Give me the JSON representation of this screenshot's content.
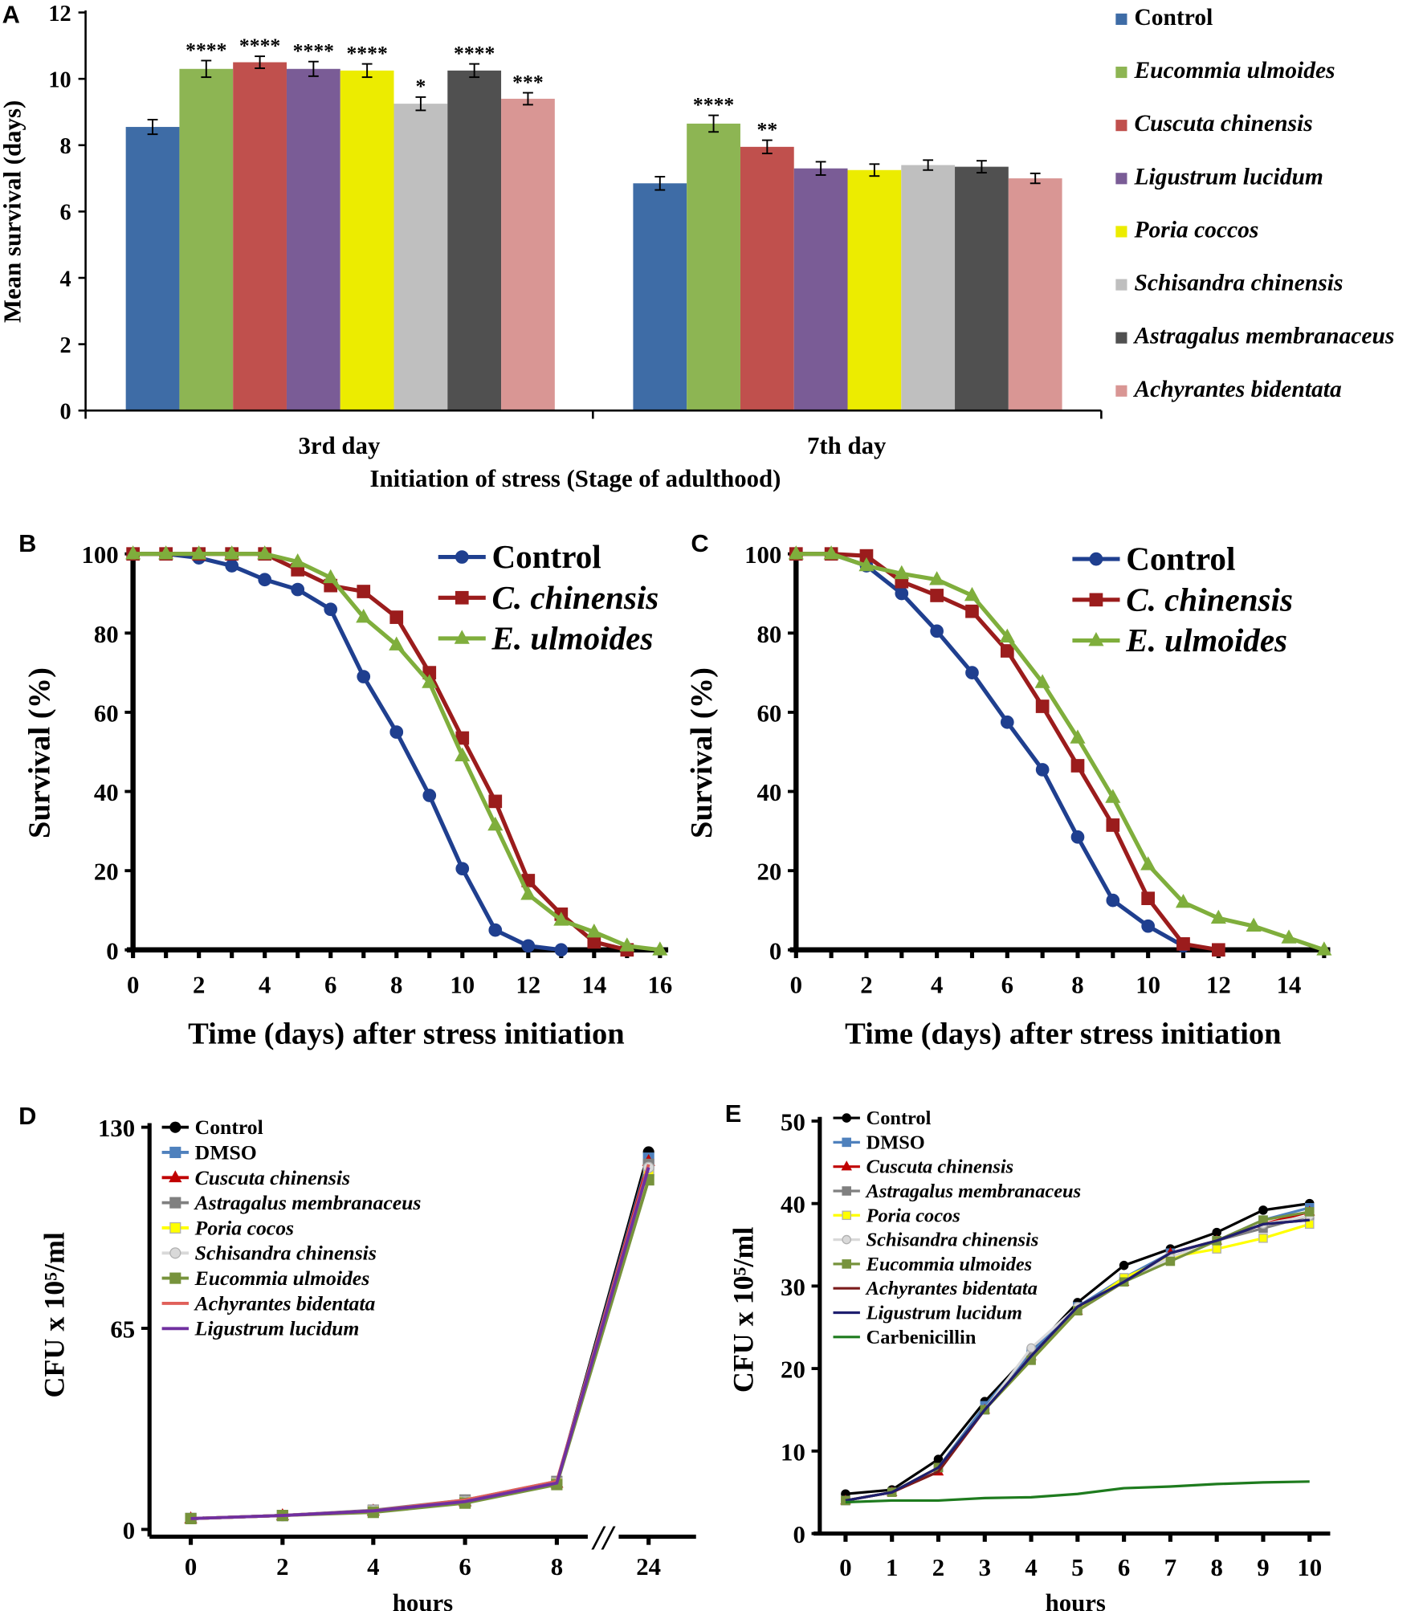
{
  "panels": [
    "A",
    "B",
    "C",
    "D",
    "E"
  ],
  "chart_data": [
    {
      "panel": "A",
      "type": "bar",
      "ylabel": "Mean survival (days)",
      "xlabel": "Initiation of stress (Stage of adulthood)",
      "categories": [
        "3rd day",
        "7th day"
      ],
      "ylim": [
        0,
        12
      ],
      "yticks": [
        0,
        2,
        4,
        6,
        8,
        10,
        12
      ],
      "legend_position": "right",
      "series": [
        {
          "name": "Control",
          "italic": false,
          "color": "#3e6ca6",
          "values": [
            8.55,
            6.85
          ],
          "errors": [
            0.22,
            0.2
          ],
          "significance": [
            "",
            ""
          ]
        },
        {
          "name": "Eucommia ulmoides",
          "italic": true,
          "color": "#8db553",
          "values": [
            10.3,
            8.65
          ],
          "errors": [
            0.25,
            0.25
          ],
          "significance": [
            "****",
            "****"
          ]
        },
        {
          "name": "Cuscuta chinensis",
          "italic": true,
          "color": "#c0504d",
          "values": [
            10.5,
            7.95
          ],
          "errors": [
            0.18,
            0.2
          ],
          "significance": [
            "****",
            "**"
          ]
        },
        {
          "name": "Ligustrum lucidum",
          "italic": true,
          "color": "#7a5c96",
          "values": [
            10.3,
            7.3
          ],
          "errors": [
            0.22,
            0.2
          ],
          "significance": [
            "****",
            ""
          ]
        },
        {
          "name": "Poria coccos",
          "italic": true,
          "color": "#ecec00",
          "values": [
            10.25,
            7.25
          ],
          "errors": [
            0.2,
            0.18
          ],
          "significance": [
            "****",
            ""
          ]
        },
        {
          "name": "Schisandra chinensis",
          "italic": true,
          "color": "#bfbfbf",
          "values": [
            9.25,
            7.4
          ],
          "errors": [
            0.2,
            0.15
          ],
          "significance": [
            "*",
            ""
          ]
        },
        {
          "name": "Astragalus membranaceus",
          "italic": true,
          "color": "#505050",
          "values": [
            10.25,
            7.35
          ],
          "errors": [
            0.2,
            0.18
          ],
          "significance": [
            "****",
            ""
          ]
        },
        {
          "name": "Achyrantes bidentata",
          "italic": true,
          "color": "#d99694",
          "values": [
            9.4,
            7.0
          ],
          "errors": [
            0.18,
            0.15
          ],
          "significance": [
            "***",
            ""
          ]
        }
      ]
    },
    {
      "panel": "B",
      "type": "line",
      "ylabel": "Survival (%)",
      "xlabel": "Time (days) after stress initiation",
      "xlim": [
        0,
        16
      ],
      "ylim": [
        0,
        100
      ],
      "xticks": [
        0,
        2,
        4,
        6,
        8,
        10,
        12,
        14,
        16
      ],
      "yticks": [
        0,
        20,
        40,
        60,
        80,
        100
      ],
      "legend_position": "top-right",
      "series": [
        {
          "name": "Control",
          "italic": false,
          "color": "#1f3f8f",
          "marker": "circle",
          "x": [
            0,
            1,
            2,
            3,
            4,
            5,
            6,
            7,
            8,
            9,
            10,
            11,
            12,
            13
          ],
          "y": [
            100,
            100,
            99,
            97,
            93.5,
            91,
            86,
            69,
            55,
            39,
            20.5,
            5,
            1,
            0
          ]
        },
        {
          "name": "C. chinensis",
          "italic": true,
          "color": "#9b1c1c",
          "marker": "square",
          "x": [
            0,
            1,
            2,
            3,
            4,
            5,
            6,
            7,
            8,
            9,
            10,
            11,
            12,
            13,
            14,
            15
          ],
          "y": [
            100,
            100,
            100,
            100,
            100,
            96,
            92,
            90.5,
            84,
            70,
            53.5,
            37.5,
            17.5,
            9,
            2,
            0
          ]
        },
        {
          "name": "E. ulmoides",
          "italic": true,
          "color": "#7fae3c",
          "marker": "triangle",
          "x": [
            0,
            1,
            2,
            3,
            4,
            5,
            6,
            7,
            8,
            9,
            10,
            11,
            12,
            13,
            14,
            15,
            16
          ],
          "y": [
            100,
            100,
            100,
            100,
            100,
            98,
            94,
            84,
            77,
            67.5,
            49,
            31.5,
            14,
            7.5,
            4.5,
            1,
            0
          ]
        }
      ]
    },
    {
      "panel": "C",
      "type": "line",
      "ylabel": "Survival (%)",
      "xlabel": "Time (days) after stress initiation",
      "xlim": [
        0,
        15
      ],
      "ylim": [
        0,
        100
      ],
      "xticks": [
        0,
        2,
        4,
        6,
        8,
        10,
        12,
        14
      ],
      "yticks": [
        0,
        20,
        40,
        60,
        80,
        100
      ],
      "legend_position": "top-right",
      "series": [
        {
          "name": "Control",
          "italic": false,
          "color": "#1f3f8f",
          "marker": "circle",
          "x": [
            0,
            1,
            2,
            3,
            4,
            5,
            6,
            7,
            8,
            9,
            10,
            11
          ],
          "y": [
            100,
            100,
            97,
            90,
            80.5,
            70,
            57.5,
            45.5,
            28.5,
            12.5,
            6,
            1
          ]
        },
        {
          "name": "C. chinensis",
          "italic": true,
          "color": "#9b1c1c",
          "marker": "square",
          "x": [
            0,
            1,
            2,
            3,
            4,
            5,
            6,
            7,
            8,
            9,
            10,
            11,
            12
          ],
          "y": [
            100,
            100,
            99.5,
            93,
            89.5,
            85.5,
            75.5,
            61.5,
            46.5,
            31.5,
            13,
            1.5,
            0
          ]
        },
        {
          "name": "E. ulmoides",
          "italic": true,
          "color": "#7fae3c",
          "marker": "triangle",
          "x": [
            0,
            1,
            2,
            3,
            4,
            5,
            6,
            7,
            8,
            9,
            10,
            11,
            12,
            13,
            14,
            15
          ],
          "y": [
            100,
            100,
            97,
            95,
            93.5,
            89.5,
            79,
            67.5,
            53.5,
            38.5,
            21.5,
            12,
            8,
            6,
            3,
            0
          ]
        }
      ]
    },
    {
      "panel": "D",
      "type": "line",
      "ylabel": "CFU x 10⁵/ml",
      "xlabel": "hours",
      "categories": [
        "0",
        "2",
        "4",
        "6",
        "8",
        "24"
      ],
      "axis_break": "//",
      "ylim": [
        0,
        130
      ],
      "yticks": [
        0,
        65,
        130
      ],
      "legend_position": "top-left",
      "series": [
        {
          "name": "Control",
          "italic": false,
          "color": "#000000",
          "marker": "circle",
          "y": [
            3.5,
            4.5,
            6,
            9,
            15,
            122
          ]
        },
        {
          "name": "DMSO",
          "italic": false,
          "color": "#4f81bd",
          "marker": "square",
          "y": [
            3.5,
            4.5,
            6,
            9,
            15,
            120
          ]
        },
        {
          "name": "Cuscuta chinensis",
          "italic": true,
          "color": "#c00000",
          "marker": "triangle",
          "y": [
            3.5,
            4.5,
            6,
            9,
            15,
            119
          ]
        },
        {
          "name": "Astragalus membranaceus",
          "italic": true,
          "color": "#808080",
          "marker": "square",
          "y": [
            3.5,
            4.5,
            6.2,
            9.5,
            15.5,
            118
          ]
        },
        {
          "name": "Poria cocos",
          "italic": true,
          "color": "#ffff00",
          "marker": "square",
          "y": [
            3.5,
            4.5,
            6,
            9,
            15,
            116
          ]
        },
        {
          "name": "Schisandra chinensis",
          "italic": true,
          "color": "#d9d9d9",
          "marker": "circle",
          "y": [
            3.5,
            4.5,
            6,
            9,
            15,
            117
          ]
        },
        {
          "name": "Eucommia ulmoides",
          "italic": true,
          "color": "#77933c",
          "marker": "square",
          "y": [
            3.5,
            4.5,
            5.5,
            8.5,
            14.5,
            113
          ]
        },
        {
          "name": "Achyrantes bidentata",
          "italic": true,
          "color": "#e0605a",
          "marker": "none",
          "y": [
            3.5,
            4.5,
            6,
            9.5,
            15.5,
            118
          ]
        },
        {
          "name": "Ligustrum lucidum",
          "italic": true,
          "color": "#7030a0",
          "marker": "none",
          "y": [
            3.5,
            4.5,
            6,
            9,
            15,
            117
          ]
        }
      ]
    },
    {
      "panel": "E",
      "type": "line",
      "ylabel": "CFU x 10⁵/ml",
      "xlabel": "hours",
      "xlim": [
        0,
        10
      ],
      "ylim": [
        0,
        50
      ],
      "xticks": [
        0,
        1,
        2,
        3,
        4,
        5,
        6,
        7,
        8,
        9,
        10
      ],
      "yticks": [
        0,
        10,
        20,
        30,
        40,
        50
      ],
      "legend_position": "top-left",
      "series": [
        {
          "name": "Control",
          "italic": false,
          "color": "#000000",
          "marker": "circle",
          "y": [
            4.8,
            5.3,
            9,
            16,
            22,
            28,
            32.5,
            34.5,
            36.5,
            39.2,
            40
          ]
        },
        {
          "name": "DMSO",
          "italic": false,
          "color": "#4f81bd",
          "marker": "square",
          "y": [
            4,
            5,
            8,
            15.5,
            22,
            27.5,
            31,
            34,
            35.5,
            38,
            39.5
          ]
        },
        {
          "name": "Cuscuta chinensis",
          "italic": true,
          "color": "#c00000",
          "marker": "triangle",
          "y": [
            4,
            5,
            7.5,
            15,
            21.5,
            27,
            30.5,
            34,
            35.5,
            37.5,
            39
          ]
        },
        {
          "name": "Astragalus membranaceus",
          "italic": true,
          "color": "#808080",
          "marker": "square",
          "y": [
            4,
            5,
            8,
            15,
            21.5,
            27,
            30.5,
            33.5,
            35.5,
            37,
            38.5
          ]
        },
        {
          "name": "Poria cocos",
          "italic": true,
          "color": "#ffff00",
          "marker": "square",
          "y": [
            4,
            5,
            8,
            15,
            21,
            27,
            31,
            33.5,
            34.5,
            35.8,
            37.5
          ]
        },
        {
          "name": "Schisandra chinensis",
          "italic": true,
          "color": "#d9d9d9",
          "marker": "circle",
          "y": [
            4,
            5,
            8,
            15,
            22.5,
            27.5,
            30.5,
            33.5,
            35.5,
            37.5,
            38.5
          ]
        },
        {
          "name": "Eucommia ulmoides",
          "italic": true,
          "color": "#77933c",
          "marker": "square",
          "y": [
            4,
            5,
            8,
            15,
            21,
            27,
            30.5,
            33,
            35.5,
            38,
            39
          ]
        },
        {
          "name": "Achyrantes bidentata",
          "italic": true,
          "color": "#7b1c1c",
          "marker": "none",
          "y": [
            4,
            5,
            7.5,
            15,
            21.5,
            27.5,
            30.5,
            34,
            35.5,
            37.5,
            38
          ]
        },
        {
          "name": "Ligustrum lucidum",
          "italic": true,
          "color": "#1f1f6f",
          "marker": "none",
          "y": [
            4,
            5,
            8,
            15,
            21.5,
            27.5,
            30.5,
            34,
            35.5,
            37.5,
            38
          ]
        },
        {
          "name": "Carbenicillin",
          "italic": false,
          "color": "#1e7b1e",
          "marker": "none",
          "y": [
            3.8,
            4,
            4,
            4.3,
            4.4,
            4.8,
            5.5,
            5.7,
            6,
            6.2,
            6.3
          ]
        }
      ]
    }
  ]
}
